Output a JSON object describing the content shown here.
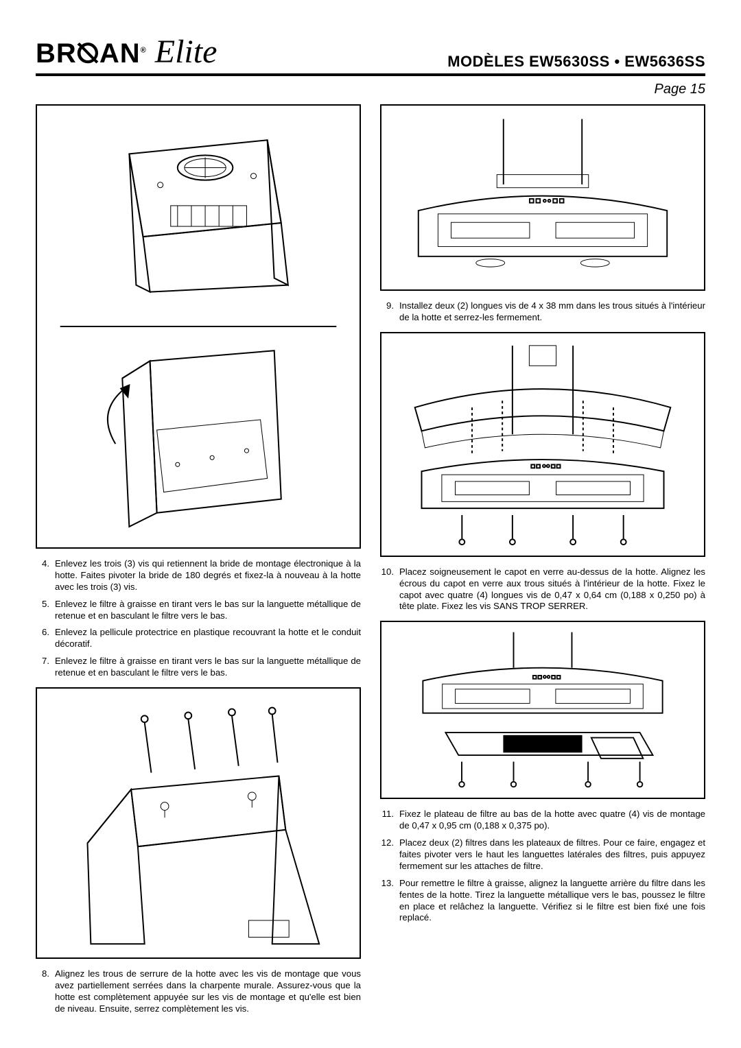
{
  "header": {
    "brand_main": "BR",
    "brand_slash": "⦰",
    "brand_tail": "AN",
    "brand_reg": "®",
    "brand_script": "Elite",
    "model_line": "MODÈLES  EW5630SS • EW5636SS"
  },
  "page_label": "Page 15",
  "left_steps_a": [
    {
      "n": "4.",
      "t": "Enlevez les trois (3) vis qui retiennent la bride de montage électronique à la hotte. Faites pivoter la bride de 180 degrés et fixez-la à nouveau à la hotte avec les trois (3) vis."
    },
    {
      "n": "5.",
      "t": "Enlevez le filtre à graisse en tirant vers le bas sur la languette métallique de retenue et en basculant le filtre vers le bas."
    },
    {
      "n": "6.",
      "t": "Enlevez la pellicule protectrice en plastique recouvrant la hotte et le conduit décoratif."
    },
    {
      "n": "7.",
      "t": "Enlevez le filtre à graisse en tirant vers le bas sur la languette métallique de retenue et en basculant le filtre vers le bas."
    }
  ],
  "left_steps_b": [
    {
      "n": "8.",
      "t": "Alignez les trous de serrure de la hotte avec les vis de montage que vous avez partiellement serrées dans la charpente murale. Assurez-vous que la hotte est complètement appuyée sur les vis de montage et qu'elle est bien de niveau. Ensuite, serrez complètement les vis."
    }
  ],
  "right_steps_a": [
    {
      "n": "9.",
      "t": "Installez deux (2) longues vis de 4 x 38 mm dans les trous situés à l'intérieur de la hotte et serrez-les fermement."
    }
  ],
  "right_steps_b": [
    {
      "n": "10.",
      "t": "Placez soigneusement le capot en verre au-dessus de la hotte. Alignez les écrous du capot en verre aux trous situés à l'intérieur de la hotte. Fixez le capot avec quatre (4) longues vis de 0,47 x 0,64 cm (0,188 x 0,250 po) à tête plate. Fixez les vis SANS TROP SERRER."
    }
  ],
  "right_steps_c": [
    {
      "n": "11.",
      "t": "Fixez le plateau de filtre au bas de la hotte avec quatre (4) vis de montage de 0,47 x 0,95 cm (0,188 x 0,375 po)."
    },
    {
      "n": "12.",
      "t": "Placez deux (2) filtres dans les plateaux de filtres. Pour ce faire, engagez et faites pivoter vers le haut les languettes latérales des filtres, puis appuyez fermement sur les attaches de filtre."
    },
    {
      "n": "13.",
      "t": "Pour remettre le filtre à graisse, alignez la languette arrière du filtre dans les fentes de la hotte. Tirez la languette métallique vers le bas, poussez le filtre en place et relâchez la languette. Vérifiez si le filtre est bien fixé une fois replacé."
    }
  ],
  "colors": {
    "fg": "#000000",
    "bg": "#ffffff"
  }
}
